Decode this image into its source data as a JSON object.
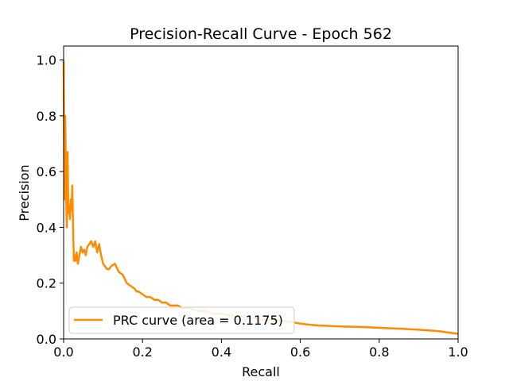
{
  "chart_data": {
    "type": "line",
    "title": "Precision-Recall Curve - Epoch 562",
    "xlabel": "Recall",
    "ylabel": "Precision",
    "xlim": [
      0.0,
      1.0
    ],
    "ylim": [
      0.0,
      1.05
    ],
    "xticks": [
      "0.0",
      "0.2",
      "0.4",
      "0.6",
      "0.8",
      "1.0"
    ],
    "yticks": [
      "0.0",
      "0.2",
      "0.4",
      "0.6",
      "0.8",
      "1.0"
    ],
    "grid": false,
    "legend_position": "lower-left",
    "series": [
      {
        "name": "PRC curve (area = 0.1175)",
        "color": "#ff8c00",
        "x": [
          0.0,
          0.002,
          0.004,
          0.006,
          0.008,
          0.01,
          0.012,
          0.014,
          0.016,
          0.018,
          0.02,
          0.022,
          0.024,
          0.026,
          0.028,
          0.03,
          0.033,
          0.036,
          0.04,
          0.044,
          0.048,
          0.052,
          0.056,
          0.06,
          0.065,
          0.07,
          0.075,
          0.08,
          0.085,
          0.09,
          0.095,
          0.1,
          0.105,
          0.11,
          0.115,
          0.12,
          0.13,
          0.14,
          0.15,
          0.16,
          0.17,
          0.18,
          0.185,
          0.19,
          0.2,
          0.21,
          0.22,
          0.23,
          0.24,
          0.25,
          0.26,
          0.27,
          0.28,
          0.29,
          0.3,
          0.32,
          0.34,
          0.36,
          0.38,
          0.4,
          0.42,
          0.45,
          0.48,
          0.5,
          0.52,
          0.55,
          0.58,
          0.6,
          0.63,
          0.65,
          0.7,
          0.75,
          0.8,
          0.85,
          0.9,
          0.95,
          1.0
        ],
        "y": [
          1.0,
          0.5,
          0.8,
          0.55,
          0.4,
          0.67,
          0.45,
          0.48,
          0.43,
          0.5,
          0.46,
          0.55,
          0.4,
          0.28,
          0.3,
          0.28,
          0.31,
          0.27,
          0.3,
          0.33,
          0.31,
          0.32,
          0.3,
          0.33,
          0.34,
          0.35,
          0.33,
          0.35,
          0.31,
          0.34,
          0.3,
          0.27,
          0.26,
          0.25,
          0.25,
          0.26,
          0.27,
          0.24,
          0.23,
          0.2,
          0.19,
          0.18,
          0.17,
          0.17,
          0.16,
          0.15,
          0.15,
          0.14,
          0.14,
          0.13,
          0.13,
          0.12,
          0.12,
          0.12,
          0.11,
          0.11,
          0.1,
          0.1,
          0.09,
          0.09,
          0.085,
          0.08,
          0.075,
          0.07,
          0.068,
          0.065,
          0.06,
          0.055,
          0.05,
          0.048,
          0.045,
          0.043,
          0.04,
          0.037,
          0.033,
          0.028,
          0.018
        ]
      }
    ]
  }
}
